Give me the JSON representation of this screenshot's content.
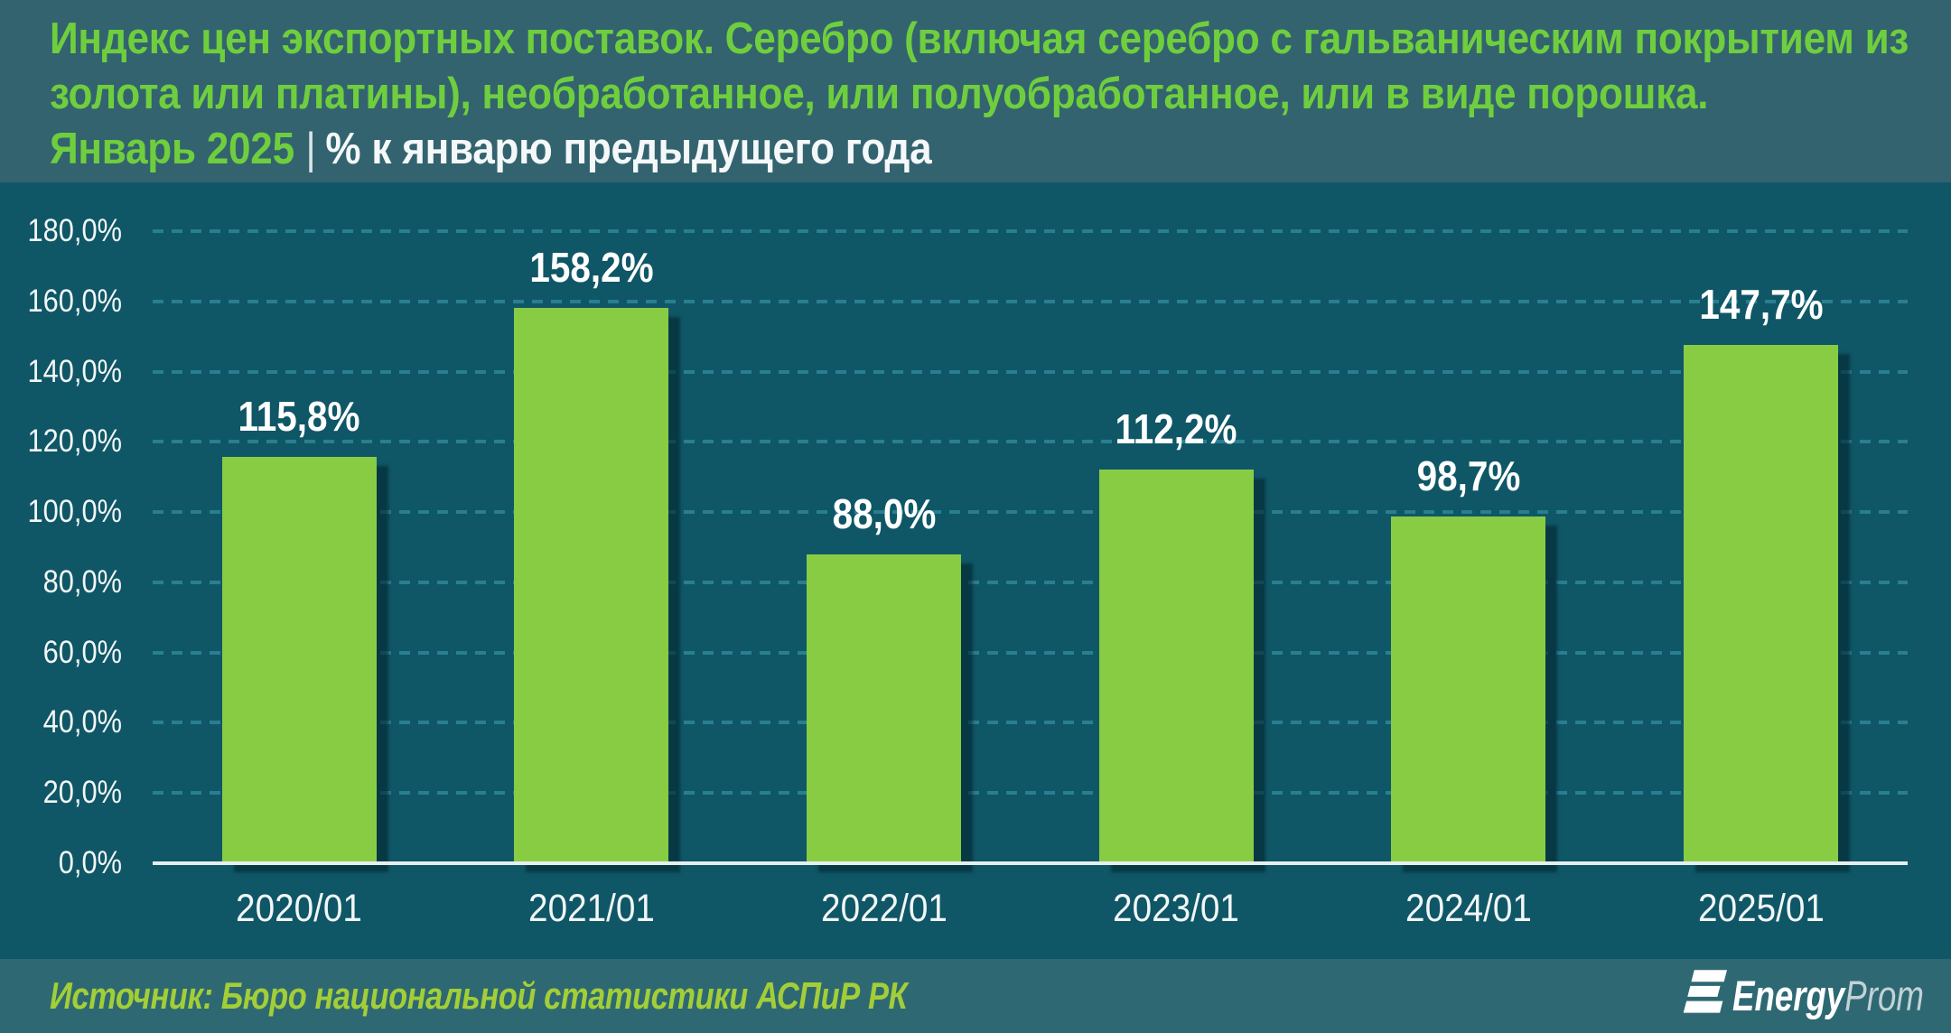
{
  "header": {
    "title_lines": [
      "Индекс цен экспортных поставок. Серебро (включая серебро с гальваническим покрытием из",
      "золота или платины), необработанное, или полуобработанное, или в виде порошка."
    ],
    "period": "Январь 2025",
    "separator": "|",
    "subtitle": "% к январю предыдущего года"
  },
  "chart_data": {
    "type": "bar",
    "title": "Индекс цен экспортных поставок. Серебро (включая серебро с гальваническим покрытием из золота или платины), необработанное, или полуобработанное, или в виде порошка. Январь 2025",
    "ylabel": "% к январю предыдущего года",
    "categories": [
      "2020/01",
      "2021/01",
      "2022/01",
      "2023/01",
      "2024/01",
      "2025/01"
    ],
    "values": [
      115.8,
      158.2,
      88.0,
      112.2,
      98.7,
      147.7
    ],
    "value_labels": [
      "115,8%",
      "158,2%",
      "88,0%",
      "112,2%",
      "98,7%",
      "147,7%"
    ],
    "ylim": [
      0,
      180
    ],
    "ytick_step": 20,
    "ytick_labels": [
      "0,0%",
      "20,0%",
      "40,0%",
      "60,0%",
      "80,0%",
      "100,0%",
      "120,0%",
      "140,0%",
      "160,0%",
      "180,0%"
    ],
    "grid": "horizontal-dashed",
    "legend": "none",
    "bar_color": "#88CC44"
  },
  "footer": {
    "source": "Источник: Бюро национальной статистики АСПиР РК",
    "logo": {
      "brand_bold": "Energy",
      "brand_light": "Prom"
    }
  },
  "colors": {
    "header_background": "#33636F",
    "chart_background": "#0F5766",
    "footer_background": "#2E6973",
    "title_green": "#6FCE3E",
    "bar_green": "#88CC44",
    "source_green": "#A3CE37",
    "gridline_teal": "#2A7E92",
    "axis_white": "#E7EEF0",
    "label_white": "#FFFFFF"
  }
}
